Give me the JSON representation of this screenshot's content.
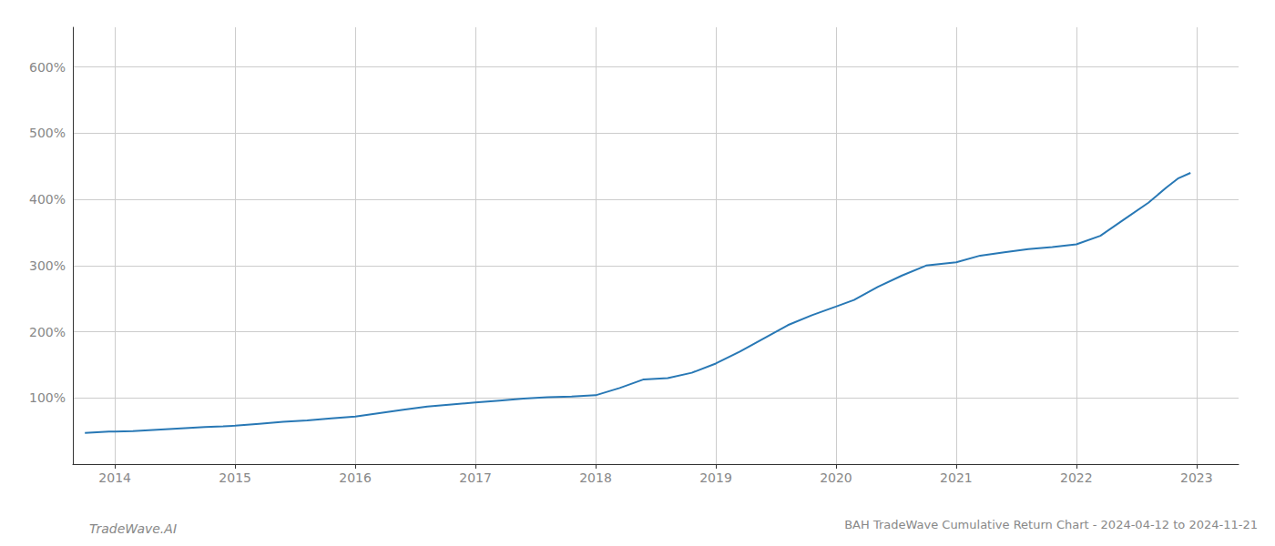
{
  "chart_data": {
    "type": "line",
    "title": "BAH TradeWave Cumulative Return Chart - 2024-04-12 to 2024-11-21",
    "annotations": [
      "TradeWave.AI"
    ],
    "color": "#2878b5",
    "grid": true,
    "x": [
      2013.75,
      2013.85,
      2013.95,
      2014.0,
      2014.15,
      2014.35,
      2014.55,
      2014.75,
      2014.9,
      2015.0,
      2015.2,
      2015.4,
      2015.6,
      2015.8,
      2016.0,
      2016.2,
      2016.4,
      2016.6,
      2016.8,
      2017.0,
      2017.2,
      2017.4,
      2017.6,
      2017.8,
      2018.0,
      2018.2,
      2018.4,
      2018.6,
      2018.8,
      2019.0,
      2019.2,
      2019.4,
      2019.6,
      2019.8,
      2020.0,
      2020.15,
      2020.35,
      2020.55,
      2020.75,
      2021.0,
      2021.2,
      2021.4,
      2021.6,
      2021.8,
      2022.0,
      2022.2,
      2022.4,
      2022.6,
      2022.75,
      2022.85,
      2022.95
    ],
    "values": [
      47,
      48,
      49,
      49,
      50,
      52,
      54,
      56,
      57,
      58,
      61,
      64,
      66,
      69,
      72,
      77,
      82,
      87,
      90,
      93,
      96,
      99,
      101,
      102,
      104,
      115,
      128,
      130,
      138,
      152,
      170,
      190,
      210,
      225,
      238,
      248,
      268,
      285,
      300,
      305,
      315,
      320,
      325,
      328,
      332,
      345,
      370,
      395,
      418,
      432,
      440
    ],
    "xlim": [
      2013.65,
      2023.35
    ],
    "xticks": [
      2014,
      2015,
      2016,
      2017,
      2018,
      2019,
      2020,
      2021,
      2022,
      2023
    ],
    "ylim": [
      0,
      660
    ],
    "yticks": [
      {
        "value": 100,
        "label": "100%"
      },
      {
        "value": 200,
        "label": "200%"
      },
      {
        "value": 300,
        "label": "300%"
      },
      {
        "value": 400,
        "label": "400%"
      },
      {
        "value": 500,
        "label": "500%"
      },
      {
        "value": 600,
        "label": "600%"
      }
    ]
  }
}
